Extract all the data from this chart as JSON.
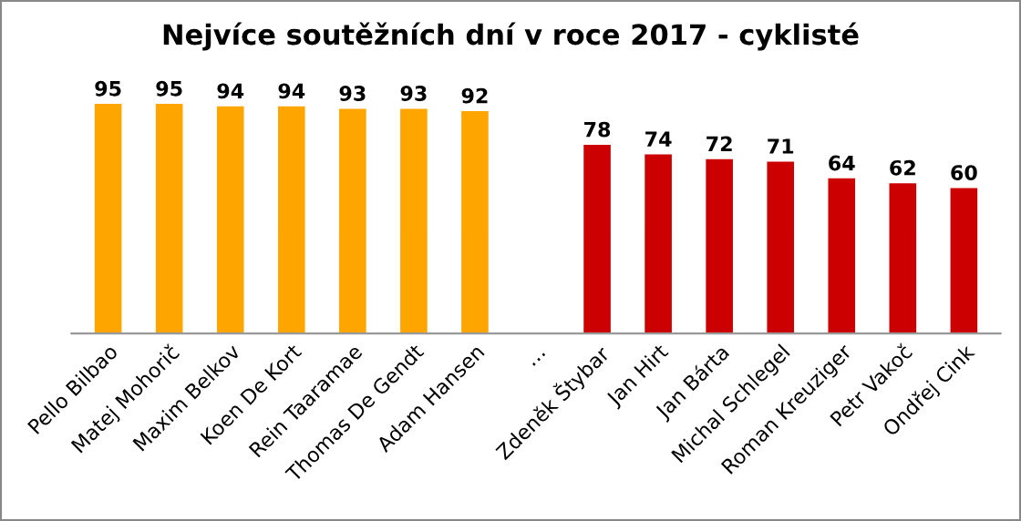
{
  "chart_data": {
    "type": "bar",
    "title": "Nejvíce soutěžních dní v roce 2017 - cyklisté",
    "categories": [
      "Pello Bilbao",
      "Matej Mohorič",
      "Maxim Belkov",
      "Koen De Kort",
      "Rein Taaramae",
      "Thomas De Gendt",
      "Adam Hansen",
      "…",
      "Zdeněk Štybar",
      "Jan Hirt",
      "Jan Bárta",
      "Michal Schlegel",
      "Roman Kreuziger",
      "Petr Vakoč",
      "Ondřej Cink"
    ],
    "values": [
      95,
      95,
      94,
      94,
      93,
      93,
      92,
      null,
      78,
      74,
      72,
      71,
      64,
      62,
      60
    ],
    "colors": [
      "#ffa500",
      "#ffa500",
      "#ffa500",
      "#ffa500",
      "#ffa500",
      "#ffa500",
      "#ffa500",
      null,
      "#cc0000",
      "#cc0000",
      "#cc0000",
      "#cc0000",
      "#cc0000",
      "#cc0000",
      "#cc0000"
    ],
    "data_labels": true,
    "grid": false,
    "legend": false
  }
}
